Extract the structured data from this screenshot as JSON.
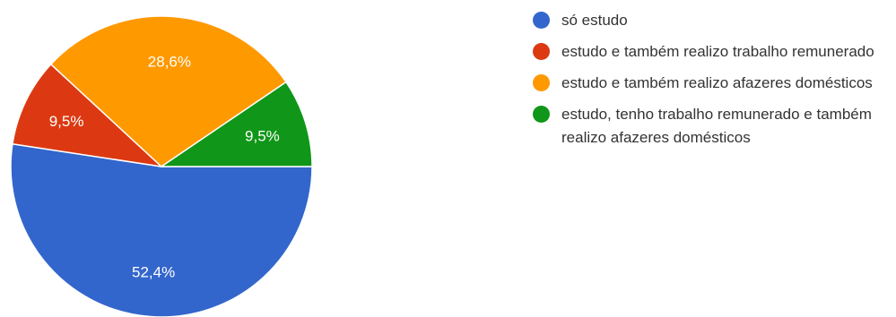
{
  "chart_data": {
    "type": "pie",
    "slices": [
      {
        "label": "só estudo",
        "value": 52.4,
        "display": "52,4%",
        "color": "#3366cc"
      },
      {
        "label": "estudo e também realizo trabalho remunerado",
        "value": 9.5,
        "display": "9,5%",
        "color": "#dc3912"
      },
      {
        "label": "estudo e também realizo afazeres domésticos",
        "value": 28.6,
        "display": "28,6%",
        "color": "#ff9900"
      },
      {
        "label": "estudo, tenho trabalho remunerado e também realizo afazeres domésticos",
        "value": 9.5,
        "display": "9,5%",
        "color": "#109618"
      }
    ],
    "legend_position": "right"
  }
}
